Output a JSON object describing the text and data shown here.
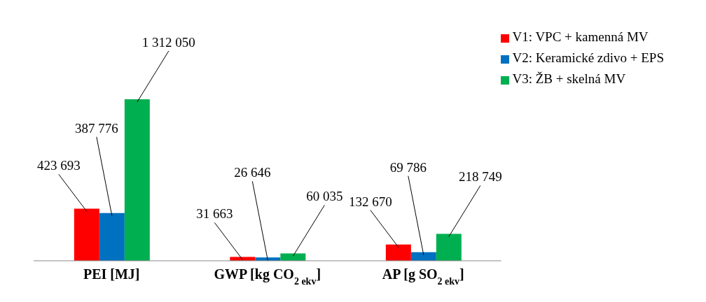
{
  "chart_data": {
    "type": "bar",
    "categories": [
      "PEI [MJ]",
      "GWP [kg CO$_{2 ekv}$]",
      "AP [g SO$_{2 ekv}$]"
    ],
    "series": [
      {
        "name": "V1: VPC + kamenná MV",
        "color": "#ff0000",
        "values": [
          423693,
          31663,
          132670
        ],
        "value_labels": [
          "423 693",
          "31 663",
          "132 670"
        ]
      },
      {
        "name": "V2: Keramické zdivo + EPS",
        "color": "#0070c0",
        "values": [
          387776,
          26646,
          69786
        ],
        "value_labels": [
          "387 776",
          "26 646",
          "69 786"
        ]
      },
      {
        "name": "V3: ŽB + skelná MV",
        "color": "#00b050",
        "values": [
          1312050,
          60035,
          218749
        ],
        "value_labels": [
          "1 312 050",
          "60 035",
          "218 749"
        ]
      }
    ],
    "legend": "top right"
  }
}
